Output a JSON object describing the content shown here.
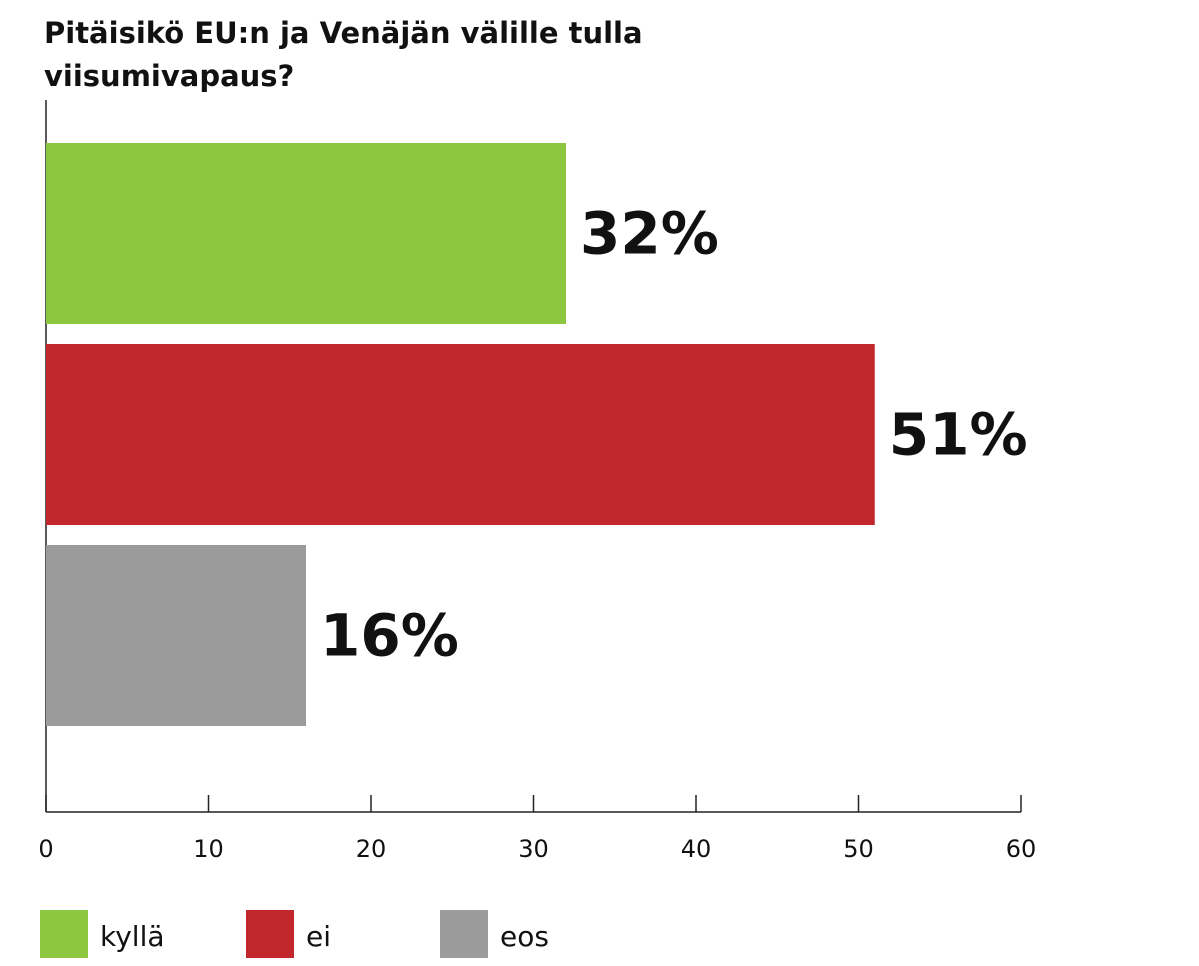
{
  "chart_data": {
    "type": "bar",
    "orientation": "horizontal",
    "title": "Pitäisikö EU:n ja Venäjän välille tulla viisumivapaus?",
    "categories": [
      "kyllä",
      "ei",
      "eos"
    ],
    "values": [
      32,
      51,
      16
    ],
    "value_labels": [
      "32%",
      "51%",
      "16%"
    ],
    "colors": [
      "#8dc63f",
      "#c1272d",
      "#9b9b9b"
    ],
    "xlim": [
      0,
      60
    ],
    "xticks": [
      0,
      10,
      20,
      30,
      40,
      50,
      60
    ],
    "legend": "bottom"
  }
}
